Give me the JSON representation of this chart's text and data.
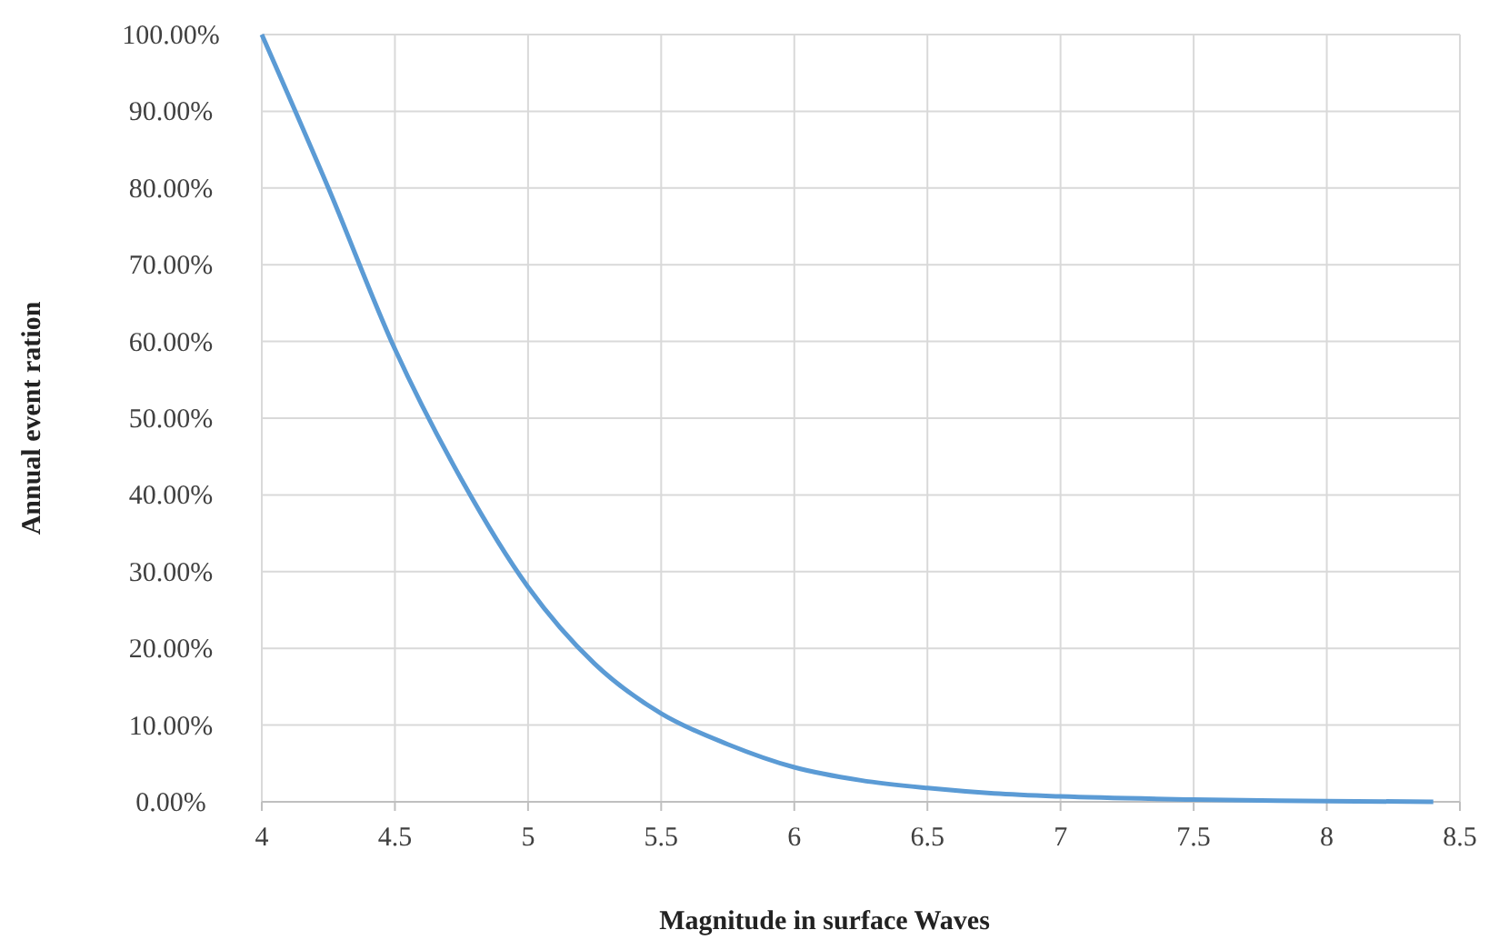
{
  "chart_data": {
    "type": "line",
    "xlabel": "Magnitude in surface Waves",
    "ylabel": "Annual event ration",
    "x": [
      4,
      4.25,
      4.5,
      4.75,
      5,
      5.25,
      5.5,
      5.75,
      6,
      6.25,
      6.5,
      6.75,
      7,
      7.5,
      8,
      8.4
    ],
    "series": [
      {
        "color": "#5b9bd5",
        "values": [
          100,
          80,
          59,
          42,
          28,
          18,
          11.5,
          7.5,
          4.5,
          2.8,
          1.8,
          1.1,
          0.7,
          0.3,
          0.1,
          0
        ]
      }
    ],
    "xlim": [
      4,
      8.5
    ],
    "xticks": [
      4,
      4.5,
      5,
      5.5,
      6,
      6.5,
      7,
      7.5,
      8,
      8.5
    ],
    "ylim": [
      0,
      100
    ],
    "yticks": [
      {
        "value": 0,
        "label": "0.00%"
      },
      {
        "value": 10,
        "label": "10.00%"
      },
      {
        "value": 20,
        "label": "20.00%"
      },
      {
        "value": 30,
        "label": "30.00%"
      },
      {
        "value": 40,
        "label": "40.00%"
      },
      {
        "value": 50,
        "label": "50.00%"
      },
      {
        "value": 60,
        "label": "60.00%"
      },
      {
        "value": 70,
        "label": "70.00%"
      },
      {
        "value": 80,
        "label": "80.00%"
      },
      {
        "value": 90,
        "label": "90.00%"
      },
      {
        "value": 100,
        "label": "100.00%"
      }
    ],
    "grid": true,
    "marker": "none",
    "line_style": "solid"
  }
}
